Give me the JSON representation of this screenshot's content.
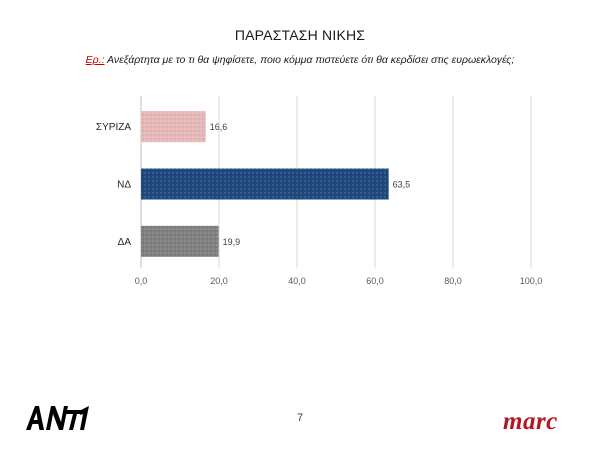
{
  "slide": {
    "title": "ΠΑΡΑΣΤΑΣΗ ΝΙΚΗΣ",
    "question_prefix": "Ερ.:",
    "question_text": " Ανεξάρτητα με το τι θα ψηφίσετε, ποιο κόμμα πιστεύετε ότι θα κερδίσει στις ευρωεκλογές;",
    "page_number": "7"
  },
  "logos": {
    "left": "ANT1",
    "right": "marc"
  },
  "chart_data": {
    "type": "bar",
    "orientation": "horizontal",
    "categories": [
      "ΣΥΡΙΖΑ",
      "ΝΔ",
      "ΔΑ"
    ],
    "values": [
      16.6,
      63.5,
      19.9
    ],
    "value_labels": [
      "16,6",
      "63,5",
      "19,9"
    ],
    "colors": [
      "#e6b9b8",
      "#1f497d",
      "#808080"
    ],
    "xlim": [
      0,
      100
    ],
    "xticks": [
      0,
      20,
      40,
      60,
      80,
      100
    ],
    "xtick_labels": [
      "0,0",
      "20,0",
      "40,0",
      "60,0",
      "80,0",
      "100,0"
    ],
    "grid": "vertical",
    "legend": "none"
  }
}
